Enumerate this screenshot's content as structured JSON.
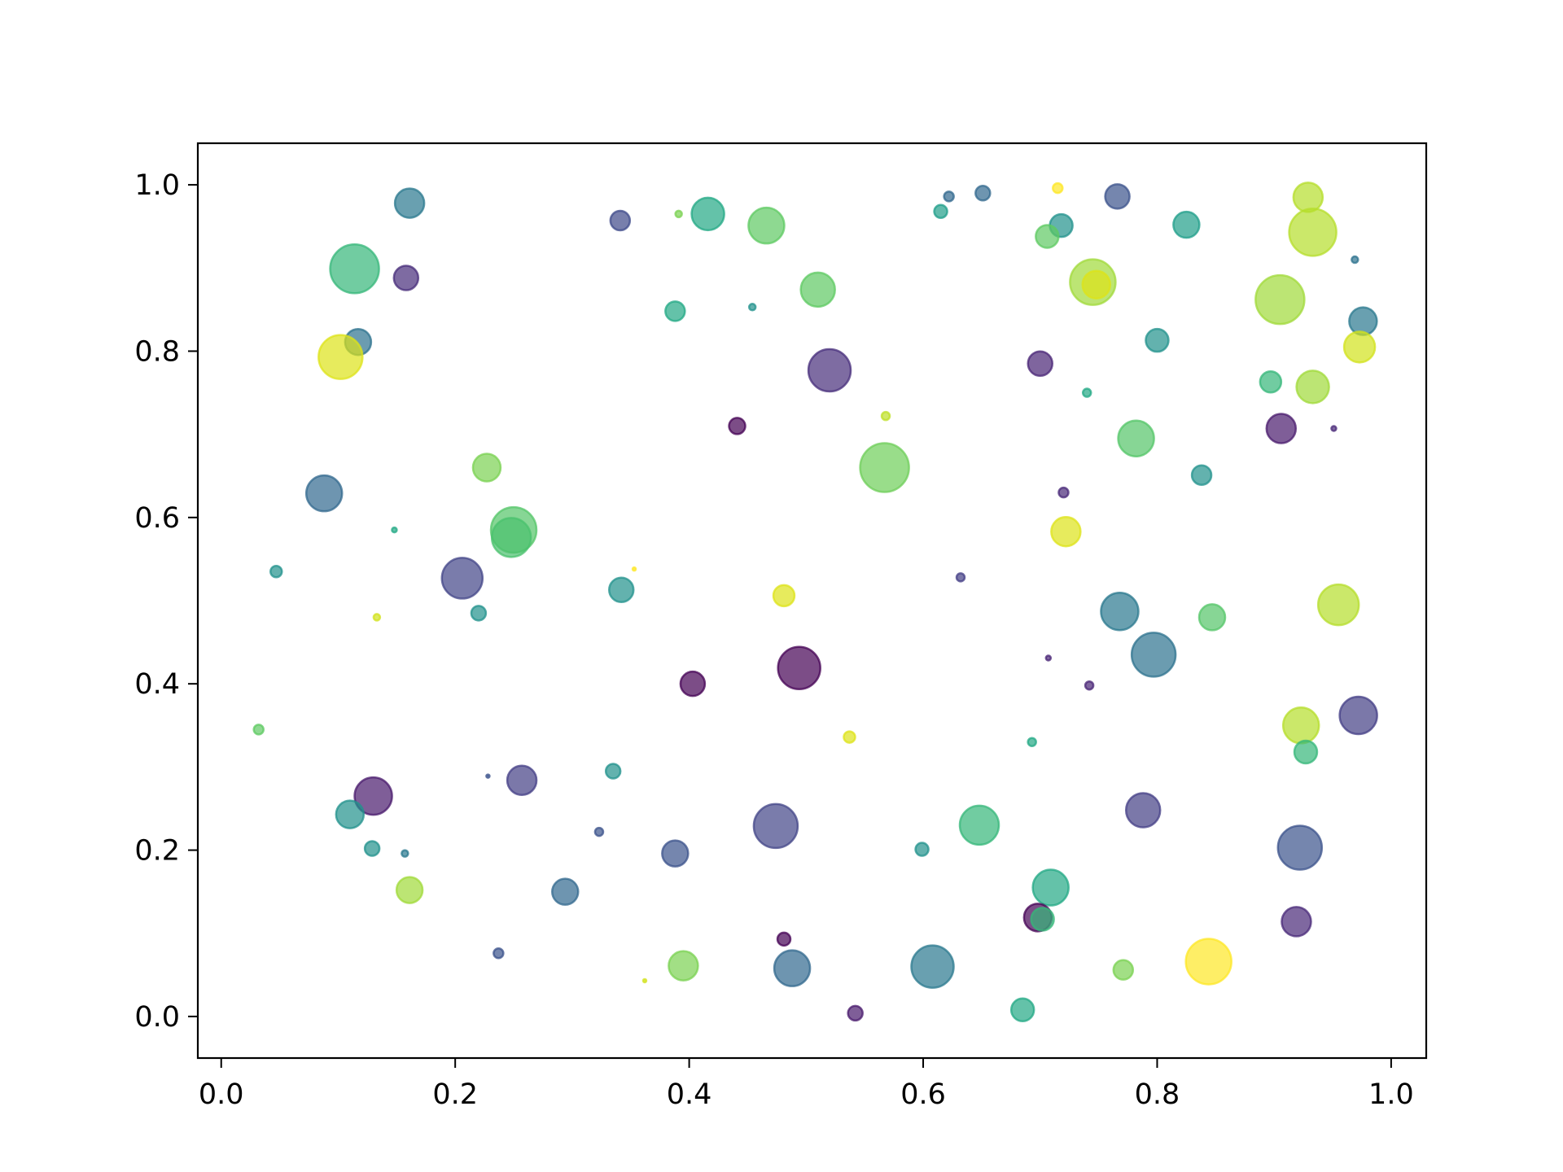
{
  "chart_data": {
    "type": "scatter",
    "title": "",
    "xlabel": "",
    "ylabel": "",
    "xlim": [
      -0.02,
      1.03
    ],
    "ylim": [
      -0.05,
      1.05
    ],
    "x_ticks": [
      0.0,
      0.2,
      0.4,
      0.6,
      0.8,
      1.0
    ],
    "x_tick_labels": [
      "0.0",
      "0.2",
      "0.4",
      "0.6",
      "0.8",
      "1.0"
    ],
    "y_ticks": [
      0.0,
      0.2,
      0.4,
      0.6,
      0.8,
      1.0
    ],
    "y_tick_labels": [
      "0.0",
      "0.2",
      "0.4",
      "0.6",
      "0.8",
      "1.0"
    ],
    "grid": false,
    "legend": "none",
    "colormap": "viridis",
    "alpha": 0.7,
    "points": [
      {
        "x": 0.161,
        "y": 0.978,
        "size": 18,
        "color": "#2a788e"
      },
      {
        "x": 0.114,
        "y": 0.899,
        "size": 30,
        "color": "#35b779"
      },
      {
        "x": 0.158,
        "y": 0.888,
        "size": 15,
        "color": "#472c7a"
      },
      {
        "x": 0.117,
        "y": 0.811,
        "size": 16,
        "color": "#2c728e"
      },
      {
        "x": 0.102,
        "y": 0.793,
        "size": 27,
        "color": "#dde318"
      },
      {
        "x": 0.341,
        "y": 0.957,
        "size": 12,
        "color": "#3e4989"
      },
      {
        "x": 0.391,
        "y": 0.965,
        "size": 4,
        "color": "#7ad151"
      },
      {
        "x": 0.416,
        "y": 0.965,
        "size": 20,
        "color": "#22a884"
      },
      {
        "x": 0.466,
        "y": 0.951,
        "size": 22,
        "color": "#5ec962"
      },
      {
        "x": 0.51,
        "y": 0.874,
        "size": 21,
        "color": "#5ec962"
      },
      {
        "x": 0.388,
        "y": 0.848,
        "size": 12,
        "color": "#22a884"
      },
      {
        "x": 0.454,
        "y": 0.853,
        "size": 4,
        "color": "#21918c"
      },
      {
        "x": 0.52,
        "y": 0.777,
        "size": 26,
        "color": "#472d7b"
      },
      {
        "x": 0.441,
        "y": 0.71,
        "size": 10,
        "color": "#440154"
      },
      {
        "x": 0.568,
        "y": 0.722,
        "size": 5,
        "color": "#bddf26"
      },
      {
        "x": 0.567,
        "y": 0.66,
        "size": 30,
        "color": "#6ece58"
      },
      {
        "x": 0.622,
        "y": 0.986,
        "size": 6,
        "color": "#31688e"
      },
      {
        "x": 0.651,
        "y": 0.99,
        "size": 9,
        "color": "#31688e"
      },
      {
        "x": 0.615,
        "y": 0.968,
        "size": 8,
        "color": "#1f9e89"
      },
      {
        "x": 0.715,
        "y": 0.996,
        "size": 6,
        "color": "#fde725"
      },
      {
        "x": 0.766,
        "y": 0.986,
        "size": 15,
        "color": "#3b528b"
      },
      {
        "x": 0.929,
        "y": 0.985,
        "size": 18,
        "color": "#b5de2b"
      },
      {
        "x": 0.718,
        "y": 0.951,
        "size": 14,
        "color": "#21918c"
      },
      {
        "x": 0.706,
        "y": 0.938,
        "size": 14,
        "color": "#5ec962"
      },
      {
        "x": 0.825,
        "y": 0.952,
        "size": 16,
        "color": "#1f9e89"
      },
      {
        "x": 0.933,
        "y": 0.943,
        "size": 29,
        "color": "#b5de2b"
      },
      {
        "x": 0.969,
        "y": 0.91,
        "size": 4,
        "color": "#2c728e"
      },
      {
        "x": 0.745,
        "y": 0.883,
        "size": 28,
        "color": "#a0da39"
      },
      {
        "x": 0.748,
        "y": 0.88,
        "size": 17,
        "color": "#dde318"
      },
      {
        "x": 0.905,
        "y": 0.862,
        "size": 30,
        "color": "#a0da39"
      },
      {
        "x": 0.976,
        "y": 0.836,
        "size": 17,
        "color": "#2a788e"
      },
      {
        "x": 0.8,
        "y": 0.813,
        "size": 14,
        "color": "#21918c"
      },
      {
        "x": 0.973,
        "y": 0.805,
        "size": 19,
        "color": "#d2e21b"
      },
      {
        "x": 0.7,
        "y": 0.785,
        "size": 15,
        "color": "#482475"
      },
      {
        "x": 0.897,
        "y": 0.763,
        "size": 13,
        "color": "#35b779"
      },
      {
        "x": 0.933,
        "y": 0.757,
        "size": 20,
        "color": "#a0da39"
      },
      {
        "x": 0.74,
        "y": 0.75,
        "size": 5,
        "color": "#22a884"
      },
      {
        "x": 0.906,
        "y": 0.707,
        "size": 18,
        "color": "#481a6c"
      },
      {
        "x": 0.951,
        "y": 0.707,
        "size": 3,
        "color": "#482878"
      },
      {
        "x": 0.782,
        "y": 0.695,
        "size": 22,
        "color": "#54c568"
      },
      {
        "x": 0.838,
        "y": 0.651,
        "size": 12,
        "color": "#21918c"
      },
      {
        "x": 0.72,
        "y": 0.63,
        "size": 6,
        "color": "#482878"
      },
      {
        "x": 0.722,
        "y": 0.583,
        "size": 18,
        "color": "#dde318"
      },
      {
        "x": 0.088,
        "y": 0.629,
        "size": 22,
        "color": "#31688e"
      },
      {
        "x": 0.227,
        "y": 0.66,
        "size": 17,
        "color": "#7ad151"
      },
      {
        "x": 0.25,
        "y": 0.585,
        "size": 28,
        "color": "#54c568"
      },
      {
        "x": 0.248,
        "y": 0.576,
        "size": 24,
        "color": "#4ac16d"
      },
      {
        "x": 0.148,
        "y": 0.585,
        "size": 3,
        "color": "#22a884"
      },
      {
        "x": 0.047,
        "y": 0.535,
        "size": 7,
        "color": "#21918c"
      },
      {
        "x": 0.206,
        "y": 0.527,
        "size": 25,
        "color": "#414487"
      },
      {
        "x": 0.22,
        "y": 0.485,
        "size": 9,
        "color": "#21918c"
      },
      {
        "x": 0.133,
        "y": 0.48,
        "size": 4,
        "color": "#d2e21b"
      },
      {
        "x": 0.342,
        "y": 0.513,
        "size": 15,
        "color": "#21918c"
      },
      {
        "x": 0.353,
        "y": 0.538,
        "size": 2,
        "color": "#fde725"
      },
      {
        "x": 0.481,
        "y": 0.506,
        "size": 13,
        "color": "#dde318"
      },
      {
        "x": 0.632,
        "y": 0.528,
        "size": 5,
        "color": "#433e85"
      },
      {
        "x": 0.768,
        "y": 0.487,
        "size": 23,
        "color": "#2a788e"
      },
      {
        "x": 0.847,
        "y": 0.48,
        "size": 16,
        "color": "#54c568"
      },
      {
        "x": 0.955,
        "y": 0.495,
        "size": 25,
        "color": "#b5de2b"
      },
      {
        "x": 0.797,
        "y": 0.435,
        "size": 27,
        "color": "#2c728e"
      },
      {
        "x": 0.707,
        "y": 0.431,
        "size": 3,
        "color": "#482475"
      },
      {
        "x": 0.742,
        "y": 0.398,
        "size": 5,
        "color": "#482475"
      },
      {
        "x": 0.494,
        "y": 0.419,
        "size": 26,
        "color": "#440154"
      },
      {
        "x": 0.403,
        "y": 0.4,
        "size": 15,
        "color": "#440154"
      },
      {
        "x": 0.032,
        "y": 0.345,
        "size": 6,
        "color": "#5ec962"
      },
      {
        "x": 0.537,
        "y": 0.336,
        "size": 7,
        "color": "#dde318"
      },
      {
        "x": 0.693,
        "y": 0.33,
        "size": 5,
        "color": "#22a884"
      },
      {
        "x": 0.923,
        "y": 0.35,
        "size": 22,
        "color": "#b5de2b"
      },
      {
        "x": 0.927,
        "y": 0.318,
        "size": 14,
        "color": "#35b779"
      },
      {
        "x": 0.972,
        "y": 0.362,
        "size": 23,
        "color": "#433e85"
      },
      {
        "x": 0.228,
        "y": 0.289,
        "size": 2,
        "color": "#3b528b"
      },
      {
        "x": 0.335,
        "y": 0.295,
        "size": 9,
        "color": "#21918c"
      },
      {
        "x": 0.257,
        "y": 0.284,
        "size": 18,
        "color": "#433e85"
      },
      {
        "x": 0.13,
        "y": 0.265,
        "size": 23,
        "color": "#481a6c"
      },
      {
        "x": 0.11,
        "y": 0.243,
        "size": 17,
        "color": "#21918c"
      },
      {
        "x": 0.129,
        "y": 0.202,
        "size": 9,
        "color": "#21918c"
      },
      {
        "x": 0.157,
        "y": 0.196,
        "size": 4,
        "color": "#2a788e"
      },
      {
        "x": 0.161,
        "y": 0.152,
        "size": 16,
        "color": "#a0da39"
      },
      {
        "x": 0.323,
        "y": 0.222,
        "size": 5,
        "color": "#3b528b"
      },
      {
        "x": 0.294,
        "y": 0.15,
        "size": 16,
        "color": "#31688e"
      },
      {
        "x": 0.388,
        "y": 0.196,
        "size": 16,
        "color": "#3b528b"
      },
      {
        "x": 0.474,
        "y": 0.229,
        "size": 27,
        "color": "#414487"
      },
      {
        "x": 0.599,
        "y": 0.201,
        "size": 8,
        "color": "#21918c"
      },
      {
        "x": 0.648,
        "y": 0.23,
        "size": 24,
        "color": "#35b779"
      },
      {
        "x": 0.788,
        "y": 0.248,
        "size": 21,
        "color": "#433e85"
      },
      {
        "x": 0.922,
        "y": 0.203,
        "size": 27,
        "color": "#3b528b"
      },
      {
        "x": 0.709,
        "y": 0.155,
        "size": 22,
        "color": "#22a884"
      },
      {
        "x": 0.698,
        "y": 0.119,
        "size": 17,
        "color": "#440154"
      },
      {
        "x": 0.702,
        "y": 0.117,
        "size": 14,
        "color": "#35b779"
      },
      {
        "x": 0.919,
        "y": 0.114,
        "size": 18,
        "color": "#482878"
      },
      {
        "x": 0.237,
        "y": 0.076,
        "size": 6,
        "color": "#3b528b"
      },
      {
        "x": 0.362,
        "y": 0.043,
        "size": 2,
        "color": "#d2e21b"
      },
      {
        "x": 0.395,
        "y": 0.061,
        "size": 18,
        "color": "#7ad151"
      },
      {
        "x": 0.481,
        "y": 0.093,
        "size": 8,
        "color": "#440154"
      },
      {
        "x": 0.488,
        "y": 0.058,
        "size": 22,
        "color": "#31688e"
      },
      {
        "x": 0.608,
        "y": 0.06,
        "size": 26,
        "color": "#2a788e"
      },
      {
        "x": 0.542,
        "y": 0.004,
        "size": 9,
        "color": "#481a6c"
      },
      {
        "x": 0.685,
        "y": 0.008,
        "size": 14,
        "color": "#22a884"
      },
      {
        "x": 0.771,
        "y": 0.056,
        "size": 12,
        "color": "#7ad151"
      },
      {
        "x": 0.844,
        "y": 0.066,
        "size": 28,
        "color": "#fde725"
      }
    ]
  }
}
